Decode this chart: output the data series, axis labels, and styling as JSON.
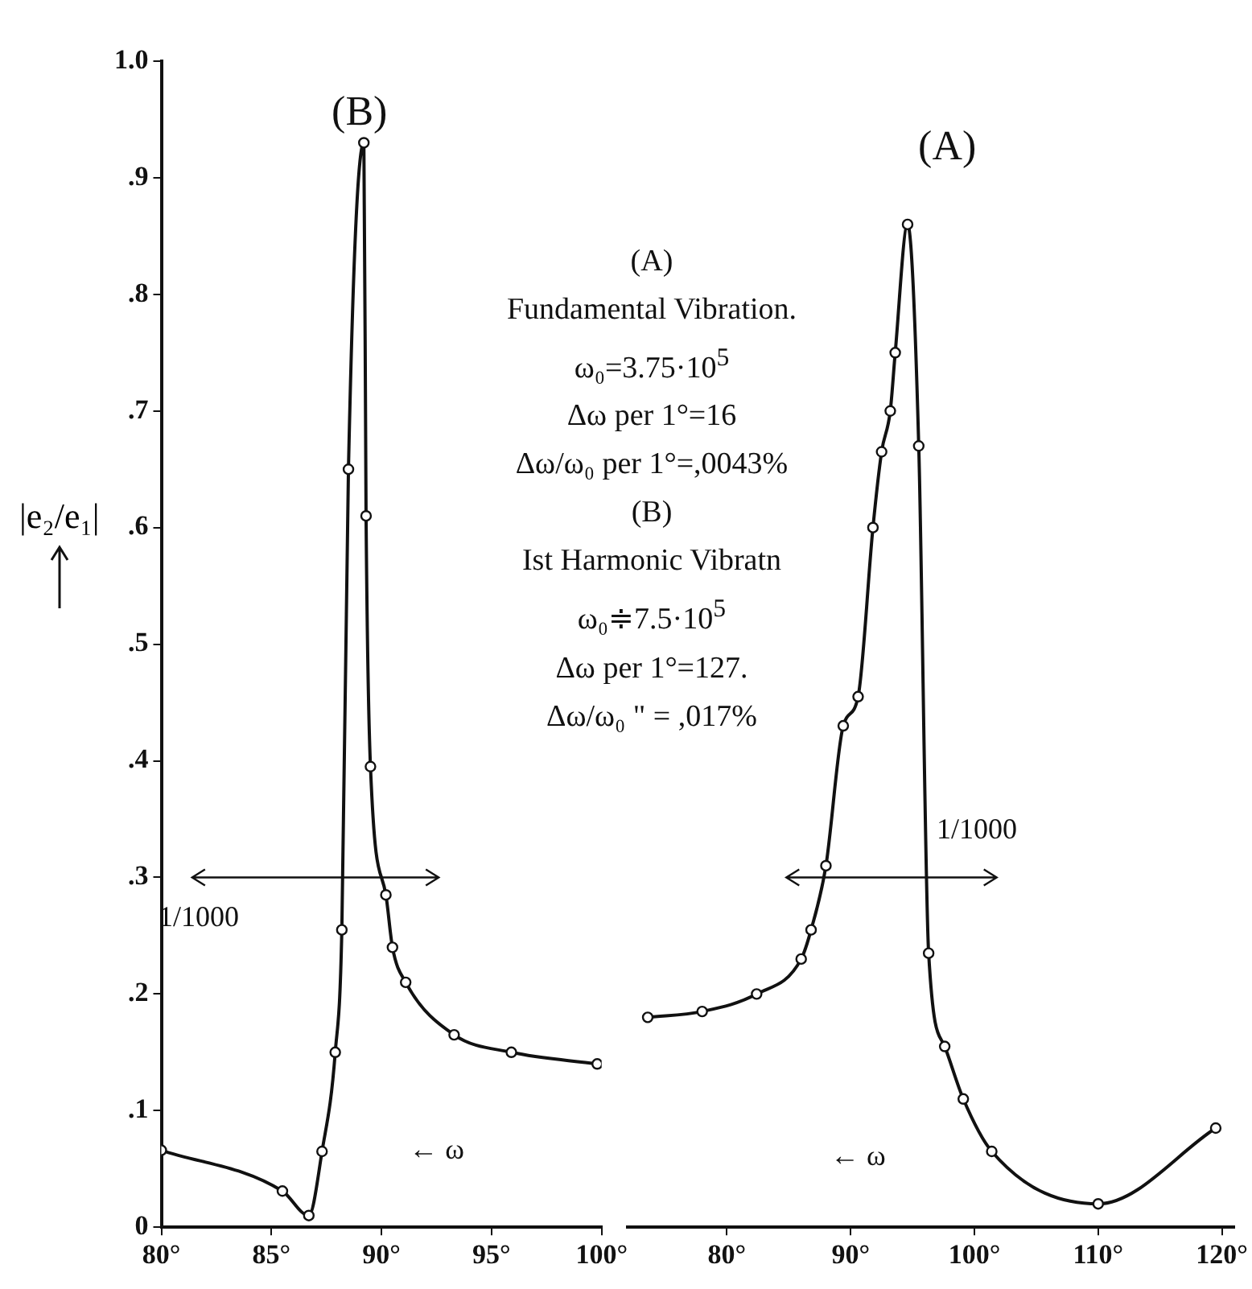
{
  "chart_data": [
    {
      "type": "line",
      "ylabel": "|e₂/e₁|",
      "marker": "circle",
      "tick_labels": true,
      "xlim": [
        80,
        100
      ],
      "xticks": [
        {
          "value": 80,
          "label": "80°"
        },
        {
          "value": 85,
          "label": "85°"
        },
        {
          "value": 90,
          "label": "90°"
        },
        {
          "value": 95,
          "label": "95°"
        },
        {
          "value": 100,
          "label": "100°"
        }
      ],
      "ylim": [
        0,
        1
      ],
      "yticks": [
        {
          "value": 0,
          "label": "0"
        },
        {
          "value": 0.1,
          "label": ".1"
        },
        {
          "value": 0.2,
          "label": ".2"
        },
        {
          "value": 0.3,
          "label": ".3"
        },
        {
          "value": 0.4,
          "label": ".4"
        },
        {
          "value": 0.5,
          "label": ".5"
        },
        {
          "value": 0.6,
          "label": ".6"
        },
        {
          "value": 0.7,
          "label": ".7"
        },
        {
          "value": 0.8,
          "label": ".8"
        },
        {
          "value": 0.9,
          "label": ".9"
        },
        {
          "value": 1,
          "label": "1.0"
        }
      ],
      "series": [
        {
          "color": "#111111",
          "x": [
            80,
            85.5,
            86.7,
            87.3,
            87.9,
            88.2,
            88.5,
            89.2,
            89.3,
            89.5,
            90.2,
            90.5,
            91.1,
            93.3,
            95.9,
            99.8
          ],
          "values": [
            0.066,
            0.031,
            0.01,
            0.065,
            0.15,
            0.255,
            0.65,
            0.93,
            0.61,
            0.395,
            0.285,
            0.24,
            0.21,
            0.165,
            0.15,
            0.14
          ]
        }
      ],
      "annotations": [
        "(B)",
        "1/1000",
        "← ω"
      ]
    },
    {
      "type": "line",
      "marker": "circle",
      "tick_labels": "x",
      "xlim": [
        72,
        121
      ],
      "xticks": [
        {
          "value": 80,
          "label": "80°"
        },
        {
          "value": 90,
          "label": "90°"
        },
        {
          "value": 100,
          "label": "100°"
        },
        {
          "value": 110,
          "label": "110°"
        },
        {
          "value": 120,
          "label": "120°"
        }
      ],
      "ylim": [
        0,
        1
      ],
      "series": [
        {
          "color": "#111111",
          "x": [
            73.6,
            78,
            82.4,
            86,
            86.8,
            88,
            89.4,
            90.6,
            91.8,
            92.5,
            93.2,
            93.6,
            94.6,
            95.5,
            96.3,
            97.6,
            99.1,
            101.4,
            110,
            119.5
          ],
          "values": [
            0.18,
            0.185,
            0.2,
            0.23,
            0.255,
            0.31,
            0.43,
            0.455,
            0.6,
            0.665,
            0.7,
            0.75,
            0.86,
            0.67,
            0.235,
            0.155,
            0.11,
            0.065,
            0.02,
            0.085
          ]
        }
      ],
      "annotations": [
        "(A)",
        "1/1000",
        "← ω",
        "(A)",
        "Fundamental Vibration.",
        "ω₀=3.75·10$^{5}$",
        "Δω per 1°=16",
        "Δω/ω₀ per 1°=,0043%",
        "(B)",
        "Ist Harmonic Vibratn",
        "ω₀≑7.5·10$^{5}$",
        "Δω per 1°=127.",
        "Δω/ω₀ \" = ,017%"
      ]
    }
  ]
}
